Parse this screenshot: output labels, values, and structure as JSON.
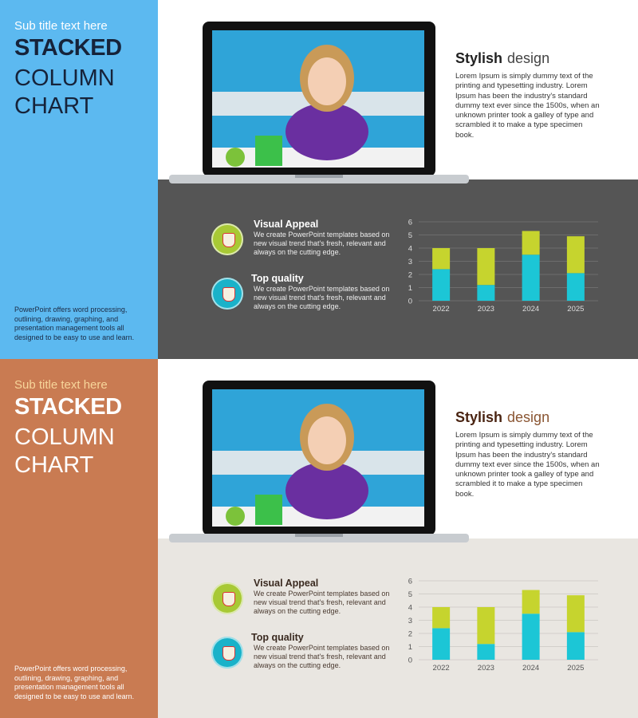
{
  "slides": [
    {
      "subtitle": "Sub title text here",
      "title": [
        "STACKED",
        "COLUMN",
        "CHART"
      ],
      "side_text": "PowerPoint offers word processing, outlining, drawing, graphing, and presentation management tools all designed to be easy to use and learn.",
      "heading": [
        "Stylish",
        "design"
      ],
      "body": "Lorem Ipsum is simply dummy text of the printing and typesetting industry. Lorem Ipsum has been the industry's standard dummy text ever since the 1500s, when an unknown printer took a galley of type and scrambled it to make a type specimen book.",
      "features": [
        {
          "title": "Visual Appeal",
          "text": "We create PowerPoint templates based on new visual trend that's fresh, relevant and always on the cutting edge."
        },
        {
          "title": "Top quality",
          "text": "We create PowerPoint templates based on new visual trend that's fresh, relevant and always on the cutting edge."
        }
      ]
    },
    {
      "subtitle": "Sub title text here",
      "title": [
        "STACKED",
        "COLUMN",
        "CHART"
      ],
      "side_text": "PowerPoint offers word processing, outlining, drawing, graphing, and presentation management tools all designed to be easy to use and learn.",
      "heading": [
        "Stylish",
        "design"
      ],
      "body": "Lorem Ipsum is simply dummy text of the printing and typesetting industry. Lorem Ipsum has been the industry's standard dummy text ever since the 1500s, when an unknown printer took a galley of type and scrambled it to make a type specimen book.",
      "features": [
        {
          "title": "Visual Appeal",
          "text": "We create PowerPoint templates based on new visual trend that's fresh, relevant and always on the cutting edge."
        },
        {
          "title": "Top quality",
          "text": "We create PowerPoint templates based on new visual trend that's fresh, relevant and always on the cutting edge."
        }
      ]
    }
  ],
  "chart_data": [
    {
      "type": "stacked-bar",
      "categories": [
        "2022",
        "2023",
        "2024",
        "2025"
      ],
      "series": [
        {
          "color": "#1cc6d6",
          "values": [
            2.4,
            1.2,
            3.5,
            2.1
          ]
        },
        {
          "color": "#c6d42e",
          "values": [
            1.6,
            2.8,
            1.8,
            2.8
          ]
        }
      ],
      "ylim": [
        0,
        6
      ],
      "yticks": [
        0,
        1,
        2,
        3,
        4,
        5,
        6
      ],
      "grid": true
    },
    {
      "type": "stacked-bar",
      "categories": [
        "2022",
        "2023",
        "2024",
        "2025"
      ],
      "series": [
        {
          "color": "#1cc6d6",
          "values": [
            2.4,
            1.2,
            3.5,
            2.1
          ]
        },
        {
          "color": "#c6d42e",
          "values": [
            1.6,
            2.8,
            1.8,
            2.8
          ]
        }
      ],
      "ylim": [
        0,
        6
      ],
      "yticks": [
        0,
        1,
        2,
        3,
        4,
        5,
        6
      ],
      "grid": true
    }
  ]
}
